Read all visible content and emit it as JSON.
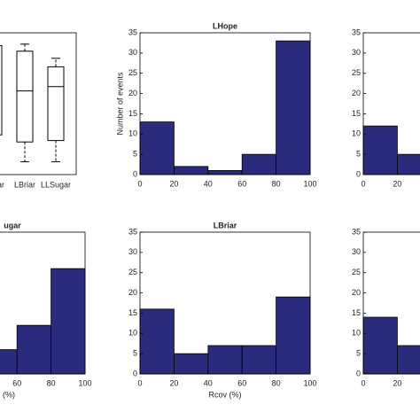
{
  "chart_data": [
    {
      "type": "box",
      "categories": [
        "Sugar",
        "LBriar",
        "LLSugar"
      ],
      "ylim": [
        0,
        100
      ],
      "series": {
        "whisker_low": [
          null,
          9,
          9
        ],
        "q1": [
          28,
          23,
          24
        ],
        "median": [
          null,
          59,
          62
        ],
        "q3": [
          91,
          87,
          76
        ],
        "whisker_high": [
          null,
          92,
          82
        ]
      }
    },
    {
      "type": "histogram",
      "title": "LHope",
      "ylabel": "Number of events",
      "bins": [
        0,
        20,
        40,
        60,
        80,
        100
      ],
      "counts": [
        13,
        2,
        1,
        5,
        33
      ],
      "color": "#2b2b7e",
      "xlim": [
        0,
        100
      ],
      "xticks": [
        0,
        20,
        40,
        60,
        80,
        100
      ],
      "ylim": [
        0,
        35
      ],
      "yticks": [
        0,
        5,
        10,
        15,
        20,
        25,
        30,
        35
      ]
    },
    {
      "type": "histogram",
      "bins": [
        0,
        20,
        40
      ],
      "counts": [
        12,
        5
      ],
      "color": "#2b2b7e",
      "xlim": [
        0,
        100
      ],
      "xticks": [
        0,
        20
      ],
      "ylim": [
        0,
        35
      ],
      "yticks": [
        0,
        5,
        10,
        15,
        20,
        25,
        30,
        35
      ]
    },
    {
      "type": "histogram",
      "title": "ugar",
      "xlabel": "(%)",
      "bins": [
        40,
        60,
        80,
        100
      ],
      "counts": [
        6,
        12,
        26
      ],
      "color": "#2b2b7e",
      "xlim": [
        0,
        100
      ],
      "xticks": [
        60,
        80,
        100
      ],
      "ylim": [
        0,
        35
      ]
    },
    {
      "type": "histogram",
      "title": "LBriar",
      "xlabel": "Rcov (%)",
      "bins": [
        0,
        20,
        40,
        60,
        80,
        100
      ],
      "counts": [
        16,
        5,
        7,
        7,
        19
      ],
      "color": "#2b2b7e",
      "xlim": [
        0,
        100
      ],
      "xticks": [
        0,
        20,
        40,
        60,
        80,
        100
      ],
      "ylim": [
        0,
        35
      ],
      "yticks": [
        0,
        5,
        10,
        15,
        20,
        25,
        30,
        35
      ]
    },
    {
      "type": "histogram",
      "bins": [
        0,
        20,
        40
      ],
      "counts": [
        14,
        7
      ],
      "color": "#2b2b7e",
      "xlim": [
        0,
        100
      ],
      "xticks": [
        0,
        20
      ],
      "ylim": [
        0,
        35
      ],
      "yticks": [
        0,
        5,
        10,
        15,
        20,
        25,
        30,
        35
      ]
    }
  ]
}
